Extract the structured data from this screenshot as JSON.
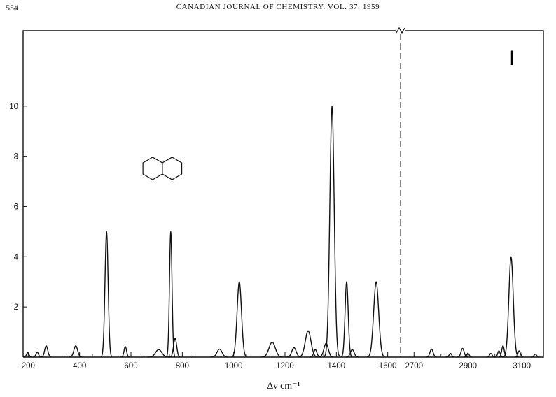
{
  "header": {
    "page_number": "554",
    "journal": "CANADIAN JOURNAL OF CHEMISTRY. VOL. 37, 1959"
  },
  "chart_data": {
    "type": "line",
    "title": "",
    "panel_label": "I",
    "xlabel": "Δν cm⁻¹",
    "ylabel": "",
    "ylim": [
      0,
      13
    ],
    "yticks": [
      2,
      4,
      6,
      8,
      10
    ],
    "axis_break": "between 1650 and 2650",
    "panels": [
      {
        "xlim": [
          180,
          1650
        ],
        "xticks": [
          200,
          400,
          600,
          800,
          1000,
          1200,
          1400,
          1600
        ]
      },
      {
        "xlim": [
          2650,
          3180
        ],
        "xticks": [
          2700,
          2900,
          3100
        ]
      }
    ],
    "structure_icon": "decalin-icon",
    "peaks": [
      {
        "x": 198,
        "y": 0.18,
        "w": 4
      },
      {
        "x": 235,
        "y": 0.2,
        "w": 4
      },
      {
        "x": 270,
        "y": 0.45,
        "w": 5
      },
      {
        "x": 385,
        "y": 0.45,
        "w": 6
      },
      {
        "x": 505,
        "y": 5.0,
        "w": 5
      },
      {
        "x": 578,
        "y": 0.42,
        "w": 4
      },
      {
        "x": 708,
        "y": 0.3,
        "w": 10
      },
      {
        "x": 755,
        "y": 5.0,
        "w": 4
      },
      {
        "x": 772,
        "y": 0.75,
        "w": 5
      },
      {
        "x": 945,
        "y": 0.32,
        "w": 8
      },
      {
        "x": 1022,
        "y": 3.0,
        "w": 7
      },
      {
        "x": 1150,
        "y": 0.6,
        "w": 10
      },
      {
        "x": 1235,
        "y": 0.38,
        "w": 7
      },
      {
        "x": 1290,
        "y": 1.05,
        "w": 9
      },
      {
        "x": 1318,
        "y": 0.3,
        "w": 5
      },
      {
        "x": 1360,
        "y": 0.55,
        "w": 7
      },
      {
        "x": 1383,
        "y": 10.0,
        "w": 7
      },
      {
        "x": 1440,
        "y": 3.0,
        "w": 5
      },
      {
        "x": 1462,
        "y": 0.3,
        "w": 6
      },
      {
        "x": 1555,
        "y": 3.0,
        "w": 8
      },
      {
        "x": 2765,
        "y": 0.32,
        "w": 5
      },
      {
        "x": 2835,
        "y": 0.15,
        "w": 4
      },
      {
        "x": 2880,
        "y": 0.35,
        "w": 5
      },
      {
        "x": 2900,
        "y": 0.15,
        "w": 4
      },
      {
        "x": 2985,
        "y": 0.15,
        "w": 4
      },
      {
        "x": 3015,
        "y": 0.25,
        "w": 4
      },
      {
        "x": 3030,
        "y": 0.45,
        "w": 4
      },
      {
        "x": 3060,
        "y": 4.0,
        "w": 7
      },
      {
        "x": 3090,
        "y": 0.25,
        "w": 4
      },
      {
        "x": 3150,
        "y": 0.12,
        "w": 4
      }
    ]
  }
}
